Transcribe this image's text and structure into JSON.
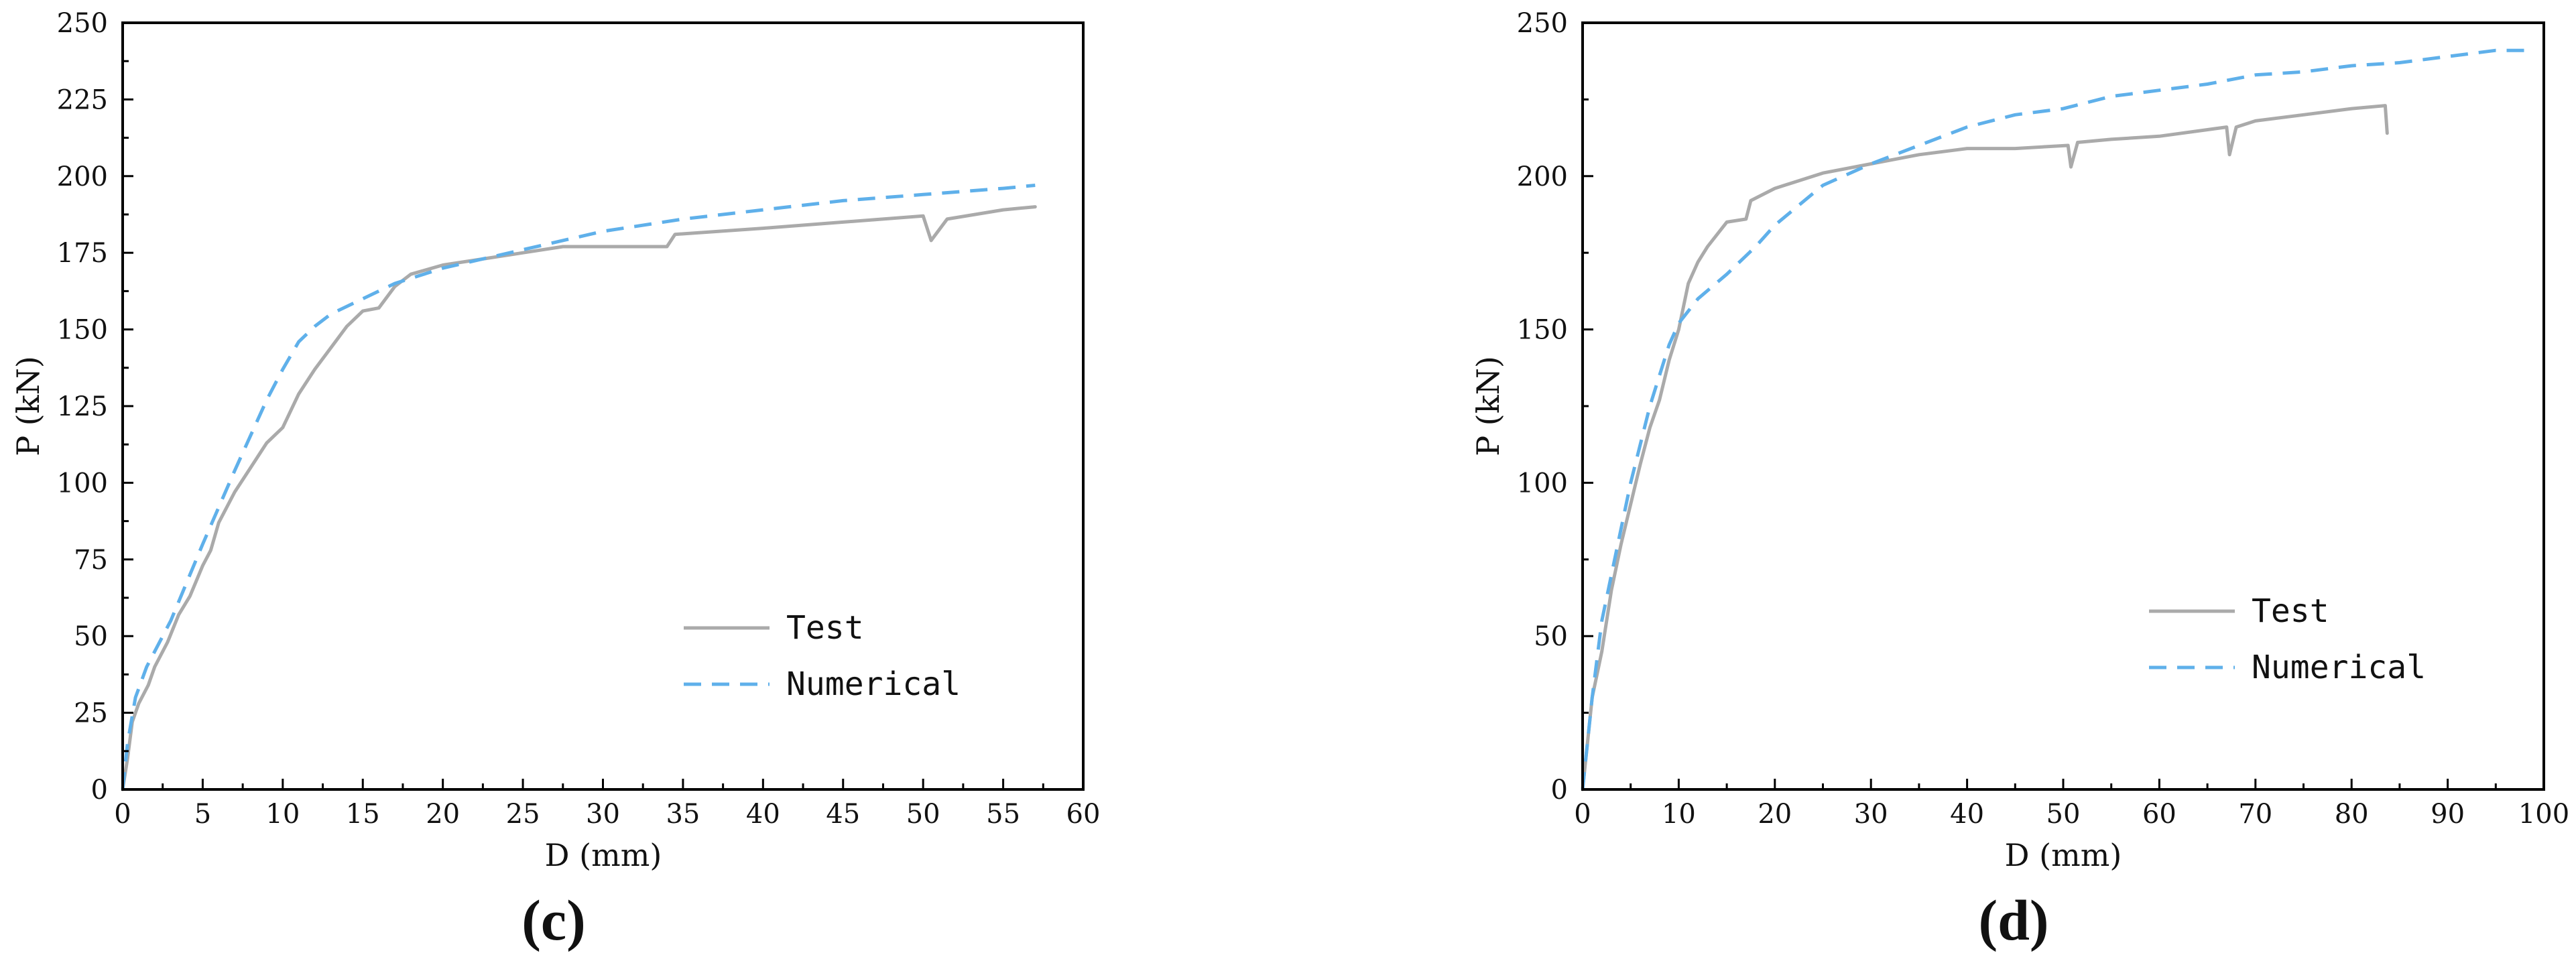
{
  "chart_data": [
    {
      "type": "line",
      "panel_label": "(c)",
      "xlabel": "D (mm)",
      "ylabel": "P (kN)",
      "xlim": [
        0,
        60
      ],
      "ylim": [
        0,
        250
      ],
      "xticks": [
        0,
        5,
        10,
        15,
        20,
        25,
        30,
        35,
        40,
        45,
        50,
        55,
        60
      ],
      "yticks": [
        0,
        25,
        50,
        75,
        100,
        125,
        150,
        175,
        200,
        225,
        250
      ],
      "grid": false,
      "legend_position": "bottom-right",
      "series": [
        {
          "name": "Test",
          "color": "#aaaaaa",
          "dash": "solid",
          "points": [
            [
              0,
              0
            ],
            [
              0.3,
              10
            ],
            [
              0.6,
              22
            ],
            [
              1.0,
              28
            ],
            [
              1.6,
              34
            ],
            [
              2.0,
              40
            ],
            [
              2.8,
              48
            ],
            [
              3.5,
              57
            ],
            [
              4.2,
              63
            ],
            [
              5.0,
              73
            ],
            [
              5.5,
              78
            ],
            [
              6.0,
              87
            ],
            [
              7.0,
              97
            ],
            [
              8.0,
              105
            ],
            [
              9.0,
              113
            ],
            [
              10.0,
              118
            ],
            [
              11.0,
              129
            ],
            [
              12.0,
              137
            ],
            [
              13.0,
              144
            ],
            [
              14.0,
              151
            ],
            [
              15.0,
              156
            ],
            [
              16.0,
              157
            ],
            [
              17.0,
              164
            ],
            [
              18.0,
              168
            ],
            [
              20.0,
              171
            ],
            [
              25.0,
              175
            ],
            [
              27.5,
              177
            ],
            [
              30.0,
              177
            ],
            [
              34.0,
              177
            ],
            [
              34.5,
              181
            ],
            [
              40.0,
              183
            ],
            [
              45.0,
              185
            ],
            [
              50.0,
              187
            ],
            [
              50.5,
              179
            ],
            [
              51.5,
              186
            ],
            [
              55.0,
              189
            ],
            [
              57.0,
              190
            ]
          ]
        },
        {
          "name": "Numerical",
          "color": "#5fb0ea",
          "dash": "dashed",
          "points": [
            [
              0,
              0
            ],
            [
              0.3,
              15
            ],
            [
              0.8,
              30
            ],
            [
              1.5,
              40
            ],
            [
              3.0,
              55
            ],
            [
              5.0,
              80
            ],
            [
              7.0,
              104
            ],
            [
              9.0,
              127
            ],
            [
              10.0,
              137
            ],
            [
              11.0,
              146
            ],
            [
              12.0,
              151
            ],
            [
              13.0,
              155
            ],
            [
              15.0,
              160
            ],
            [
              17.0,
              165
            ],
            [
              20.0,
              170
            ],
            [
              25.0,
              176
            ],
            [
              30.0,
              182
            ],
            [
              35.0,
              186
            ],
            [
              40.0,
              189
            ],
            [
              45.0,
              192
            ],
            [
              50.0,
              194
            ],
            [
              55.0,
              196
            ],
            [
              57.0,
              197
            ]
          ]
        }
      ]
    },
    {
      "type": "line",
      "panel_label": "(d)",
      "xlabel": "D (mm)",
      "ylabel": "P (kN)",
      "xlim": [
        0,
        100
      ],
      "ylim": [
        0,
        250
      ],
      "xticks": [
        0,
        10,
        20,
        30,
        40,
        50,
        60,
        70,
        80,
        90,
        100
      ],
      "yticks": [
        0,
        50,
        100,
        150,
        200,
        250
      ],
      "grid": false,
      "legend_position": "bottom-right",
      "series": [
        {
          "name": "Test",
          "color": "#aaaaaa",
          "dash": "solid",
          "points": [
            [
              0,
              0
            ],
            [
              0.5,
              15
            ],
            [
              1.0,
              30
            ],
            [
              2.0,
              45
            ],
            [
              3.0,
              65
            ],
            [
              4.0,
              80
            ],
            [
              5.0,
              93
            ],
            [
              6.0,
              106
            ],
            [
              7.0,
              118
            ],
            [
              8.0,
              127
            ],
            [
              9.0,
              140
            ],
            [
              10.0,
              150
            ],
            [
              11.0,
              165
            ],
            [
              12.0,
              172
            ],
            [
              13.0,
              177
            ],
            [
              15.0,
              185
            ],
            [
              17.0,
              186
            ],
            [
              17.5,
              192
            ],
            [
              20.0,
              196
            ],
            [
              25.0,
              201
            ],
            [
              30.0,
              204
            ],
            [
              35.0,
              207
            ],
            [
              40.0,
              209
            ],
            [
              45.0,
              209
            ],
            [
              50.5,
              210
            ],
            [
              50.8,
              203
            ],
            [
              51.5,
              211
            ],
            [
              55.0,
              212
            ],
            [
              60.0,
              213
            ],
            [
              67.0,
              216
            ],
            [
              67.3,
              207
            ],
            [
              68.0,
              216
            ],
            [
              70.0,
              218
            ],
            [
              75.0,
              220
            ],
            [
              80.0,
              222
            ],
            [
              83.5,
              223
            ],
            [
              83.7,
              214
            ]
          ]
        },
        {
          "name": "Numerical",
          "color": "#5fb0ea",
          "dash": "dashed",
          "points": [
            [
              0,
              0
            ],
            [
              1.0,
              30
            ],
            [
              2.0,
              55
            ],
            [
              3.0,
              70
            ],
            [
              5.0,
              100
            ],
            [
              7.0,
              125
            ],
            [
              8.0,
              135
            ],
            [
              9.0,
              145
            ],
            [
              10.0,
              152
            ],
            [
              12.0,
              160
            ],
            [
              15.0,
              168
            ],
            [
              18.0,
              177
            ],
            [
              20.0,
              184
            ],
            [
              25.0,
              197
            ],
            [
              30.0,
              204
            ],
            [
              35.0,
              210
            ],
            [
              40.0,
              216
            ],
            [
              45.0,
              220
            ],
            [
              50.0,
              222
            ],
            [
              55.0,
              226
            ],
            [
              60.0,
              228
            ],
            [
              65.0,
              230
            ],
            [
              70.0,
              233
            ],
            [
              75.0,
              234
            ],
            [
              80.0,
              236
            ],
            [
              85.0,
              237
            ],
            [
              90.0,
              239
            ],
            [
              95.0,
              241
            ],
            [
              98.0,
              241
            ]
          ]
        }
      ]
    }
  ]
}
